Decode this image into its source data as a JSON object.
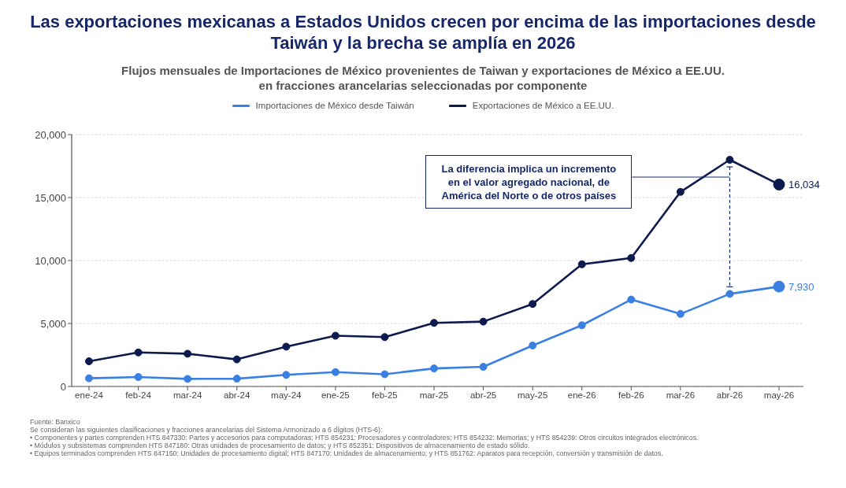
{
  "chart_data": {
    "type": "line",
    "title": "Las exportaciones mexicanas a Estados Unidos crecen por encima de las importaciones desde Taiwán y la brecha se amplía en 2026",
    "subtitle": "Flujos mensuales de Importaciones de México provenientes de Taiwan y exportaciones de México a EE.UU. en fracciones arancelarias seleccionadas por componente",
    "categories": [
      "ene-24",
      "feb-24",
      "mar-24",
      "abr-24",
      "may-24",
      "ene-25",
      "feb-25",
      "mar-25",
      "abr-25",
      "may-25",
      "ene-26",
      "feb-26",
      "mar-26",
      "abr-26",
      "may-26"
    ],
    "series": [
      {
        "name": "Importaciones de México desde Taiwán",
        "color": "#3a80e3",
        "values": [
          650,
          750,
          600,
          620,
          920,
          1140,
          970,
          1430,
          1560,
          3250,
          4860,
          6900,
          5760,
          7350,
          7930
        ],
        "value_labels": [
          null,
          null,
          null,
          null,
          null,
          null,
          null,
          null,
          null,
          null,
          null,
          null,
          null,
          null,
          "7,930"
        ]
      },
      {
        "name": "Exportaciones de México a EE.UU.",
        "color": "#0c1a4e",
        "values": [
          2000,
          2700,
          2600,
          2150,
          3160,
          4030,
          3920,
          5050,
          5150,
          6550,
          9700,
          10200,
          15450,
          18000,
          16034
        ],
        "value_labels": [
          null,
          null,
          null,
          null,
          null,
          null,
          null,
          null,
          null,
          null,
          null,
          null,
          null,
          null,
          "16,034"
        ]
      }
    ],
    "ylim": [
      0,
      20000
    ],
    "yticks": [
      {
        "value": 0,
        "label": "0"
      },
      {
        "value": 5000,
        "label": "5,000"
      },
      {
        "value": 10000,
        "label": "10,000"
      },
      {
        "value": 15000,
        "label": "15,000"
      },
      {
        "value": 20000,
        "label": "20,000"
      }
    ],
    "grid": "y",
    "legend": "top",
    "marker": "circle",
    "line_style": "solid",
    "annotations": [
      "La diferencia implica un incremento en el valor agregado nacional, de América del Norte o de otros países",
      "Fuente: Banxico",
      "Se consideran las siguientes clasificaciones y fracciones arancelarias del Sistema Armonizado a 6 dígitos (HTS-6):",
      "• Componentes y partes comprenden HTS 847330: Partes y accesorios para computadoras; HTS 854231: Procesadores y controladores; HTS 854232: Memorias; y HTS 854239: Otros circuitos integrados electrónicos.",
      "• Módulos y subsistemas comprenden HTS 847180: Otras unidades de procesamiento de datos; y HTS 852351: Dispositivos de almacenamiento de estado sólido.",
      "• Equipos terminados comprenden HTS 847150: Unidades de procesamiento digital; HTS 847170: Unidades de almacenamiento; y HTS 851762: Aparatos para recepción, conversión y transmisión de datos."
    ]
  }
}
